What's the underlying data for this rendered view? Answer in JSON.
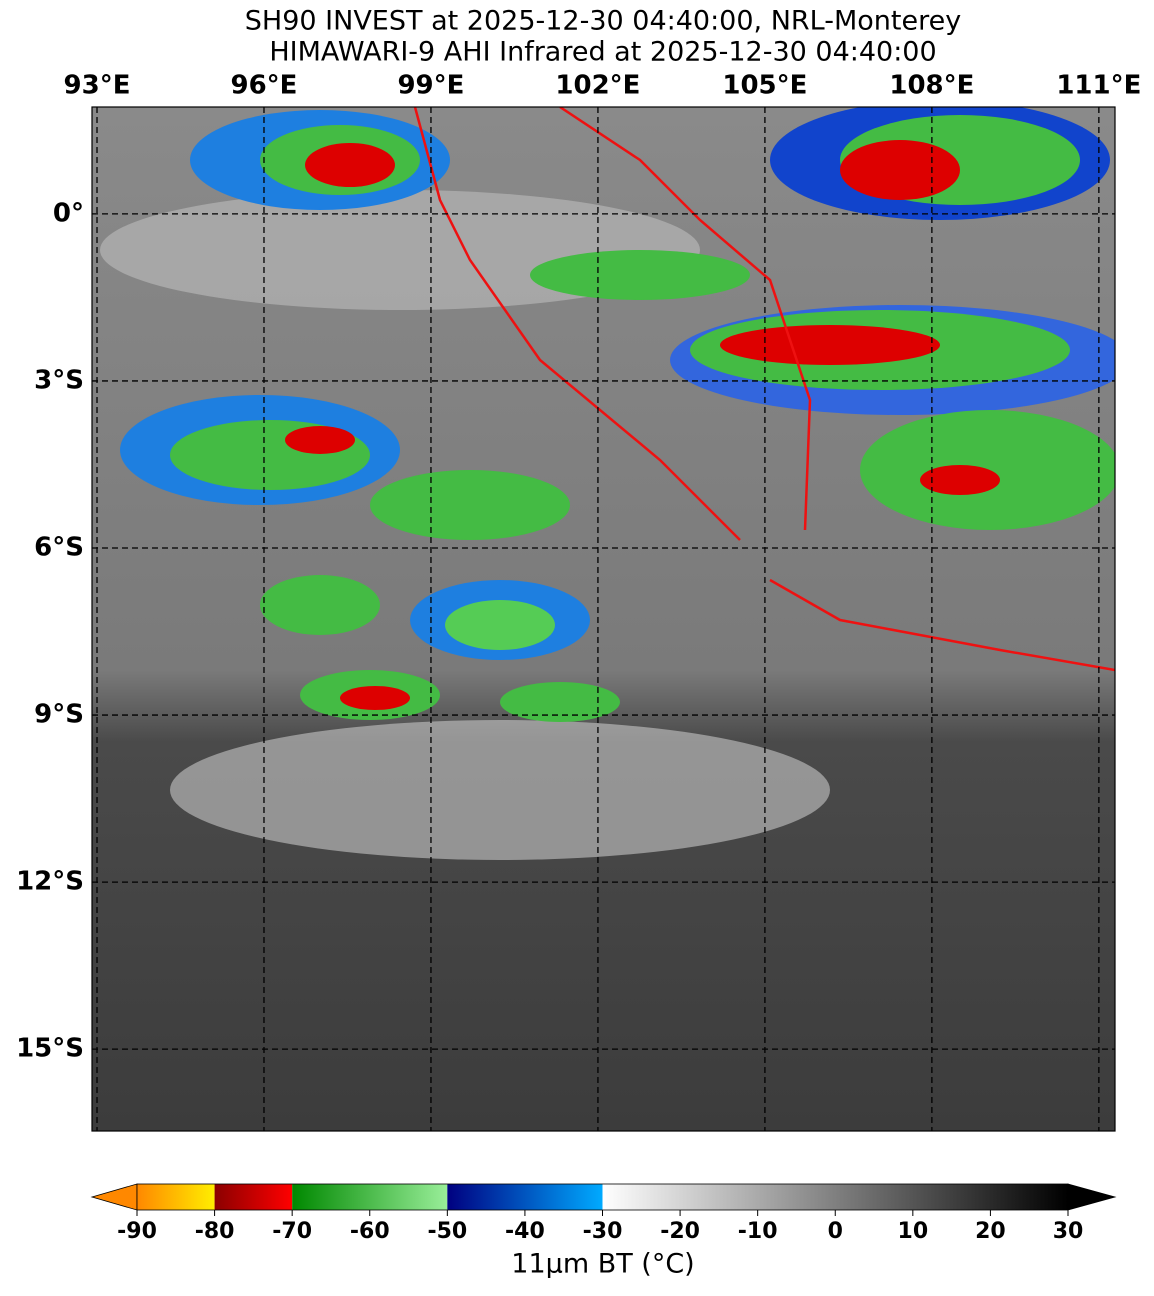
{
  "title": [
    "SH90 INVEST at 2025-12-30 04:40:00, NRL-Monterey",
    "HIMAWARI-9 AHI Infrared at 2025-12-30 04:40:00"
  ],
  "map": {
    "xlim": [
      92.91,
      111.29
    ],
    "ylim": [
      -16.47,
      1.92
    ],
    "xticks": [
      {
        "value": 93,
        "label": "93°E"
      },
      {
        "value": 96,
        "label": "96°E"
      },
      {
        "value": 99,
        "label": "99°E"
      },
      {
        "value": 102,
        "label": "102°E"
      },
      {
        "value": 105,
        "label": "105°E"
      },
      {
        "value": 108,
        "label": "108°E"
      },
      {
        "value": 111,
        "label": "111°E"
      }
    ],
    "yticks": [
      {
        "value": 0,
        "label": "0°"
      },
      {
        "value": -3,
        "label": "3°S"
      },
      {
        "value": -6,
        "label": "6°S"
      },
      {
        "value": -9,
        "label": "9°S"
      },
      {
        "value": -12,
        "label": "12°S"
      },
      {
        "value": -15,
        "label": "15°S"
      }
    ]
  },
  "colorbar": {
    "lim": [
      -90,
      30
    ],
    "ticks": [
      -90,
      -80,
      -70,
      -60,
      -50,
      -40,
      -30,
      -20,
      -10,
      0,
      10,
      20,
      30
    ],
    "label": "11μm BT (°C)"
  }
}
